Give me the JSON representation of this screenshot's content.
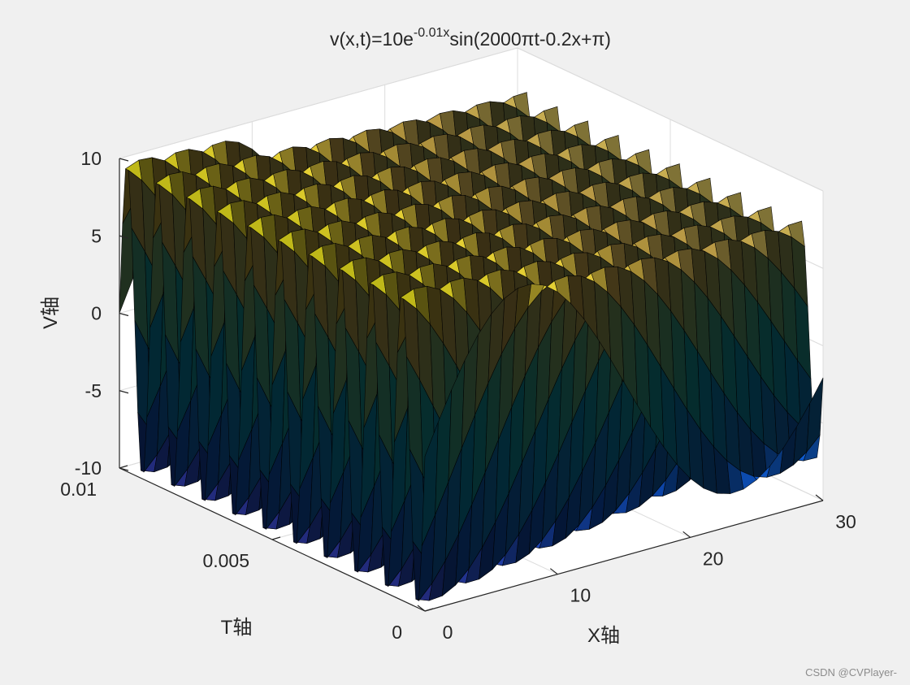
{
  "chart_data": {
    "type": "surface",
    "title_parts": {
      "base": "v(x,t)=10e",
      "superscript": "-0.01x",
      "tail": "sin(2000πt-0.2x+π)"
    },
    "xlabel": "X轴",
    "ylabel": "T轴",
    "zlabel": "V轴",
    "xlim": [
      0,
      30
    ],
    "ylim": [
      0,
      0.01
    ],
    "zlim": [
      -10,
      10
    ],
    "xticks": [
      0,
      10,
      20,
      30
    ],
    "xtick_labels": [
      "0",
      "10",
      "20",
      "30"
    ],
    "yticks": [
      0,
      0.005,
      0.01
    ],
    "ytick_labels": [
      "0",
      "0.005",
      "0.01"
    ],
    "zticks": [
      -10,
      -5,
      0,
      5,
      10
    ],
    "ztick_labels": [
      "-10",
      "-5",
      "0",
      "5",
      "10"
    ],
    "grid": true,
    "colormap": "parula",
    "function": "v(x,t) = 10*exp(-0.01*x)*sin(2000*pi*t - 0.2*x + pi)"
  },
  "watermark": "CSDN @CVPlayer-",
  "colors": {
    "figure_background": "#f0f0f0",
    "axes_background": "#ffffff",
    "grid": "#dcdcdc",
    "axis_line": "#262626",
    "mesh_edge": "#000000"
  }
}
